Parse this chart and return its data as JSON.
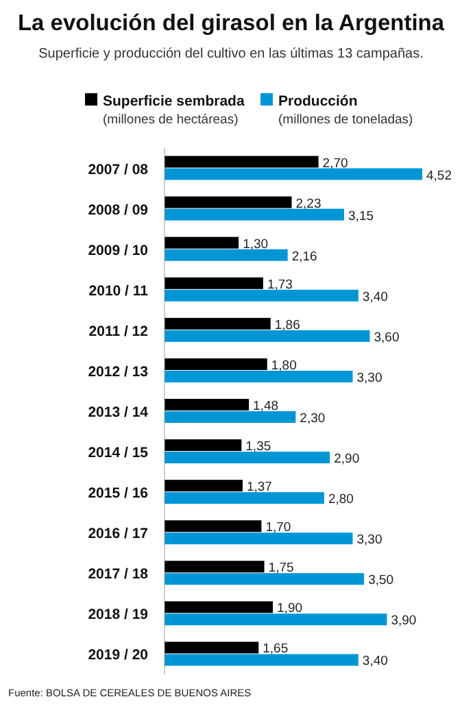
{
  "chart_data": {
    "type": "bar",
    "orientation": "horizontal",
    "title": "La evolución del girasol en la Argentina",
    "subtitle": "Superficie y producción del cultivo en las últimas 13 campañas.",
    "categories": [
      "2007 / 08",
      "2008 / 09",
      "2009 / 10",
      "2010 / 11",
      "2011 / 12",
      "2012 / 13",
      "2013 / 14",
      "2014 / 15",
      "2015 / 16",
      "2016 / 17",
      "2017 / 18",
      "2018 / 19",
      "2019 / 20"
    ],
    "series": [
      {
        "name": "Superficie sembrada (millones de hectáreas)",
        "color": "#000000",
        "values": [
          2.7,
          2.23,
          1.3,
          1.73,
          1.86,
          1.8,
          1.48,
          1.35,
          1.37,
          1.7,
          1.75,
          1.9,
          1.65
        ],
        "value_labels": [
          "2,70",
          "2,23",
          "1,30",
          "1,73",
          "1,86",
          "1,80",
          "1,48",
          "1,35",
          "1,37",
          "1,70",
          "1,75",
          "1,90",
          "1,65"
        ]
      },
      {
        "name": "Producción (millones de toneladas)",
        "color": "#0096d6",
        "values": [
          4.52,
          3.15,
          2.16,
          3.4,
          3.6,
          3.3,
          2.3,
          2.9,
          2.8,
          3.3,
          3.5,
          3.9,
          3.4
        ],
        "value_labels": [
          "4,52",
          "3,15",
          "2,16",
          "3,40",
          "3,60",
          "3,30",
          "2,30",
          "2,90",
          "2,80",
          "3,30",
          "3,50",
          "3,90",
          "3,40"
        ]
      }
    ],
    "legend": "top",
    "annotations": [
      "Fuente: BOLSA DE CEREALES DE BUENOS AIRES"
    ]
  }
}
